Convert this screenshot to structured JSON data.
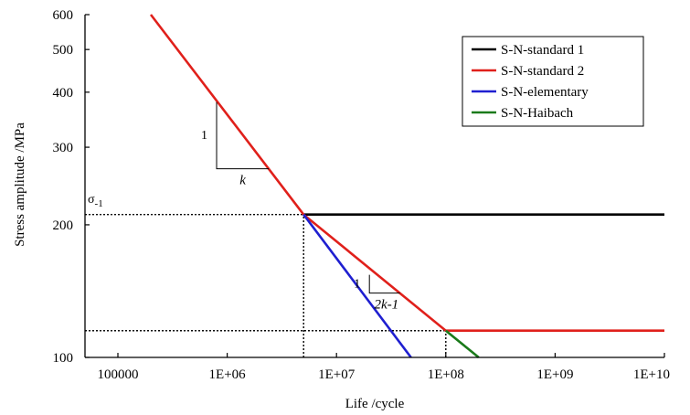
{
  "chart_data": {
    "type": "line",
    "xlabel": "Life /cycle",
    "ylabel": "Stress amplitude /MPa",
    "x_scale": "log",
    "y_scale": "log",
    "xlim": [
      50000,
      10000000000
    ],
    "ylim": [
      100,
      600
    ],
    "x_ticks": [
      100000,
      1000000,
      10000000,
      100000000,
      1000000000,
      10000000000
    ],
    "x_tick_labels": [
      "100000",
      "1E+06",
      "1E+07",
      "1E+08",
      "1E+09",
      "1E+10"
    ],
    "y_ticks": [
      100,
      200,
      300,
      400,
      500,
      600
    ],
    "y_tick_labels": [
      "100",
      "200",
      "300",
      "400",
      "500",
      "600"
    ],
    "grid": false,
    "legend_position": "top-right",
    "series": [
      {
        "name": "S-N-standard 1",
        "color": "#000000",
        "x": [
          5000000,
          10000000000
        ],
        "y": [
          211,
          211
        ]
      },
      {
        "name": "S-N-standard 2",
        "color": "#e0201b",
        "x": [
          200000,
          5000000,
          100000000,
          10000000000
        ],
        "y": [
          600,
          211,
          115,
          115
        ]
      },
      {
        "name": "S-N-elementary",
        "color": "#1f1fd0",
        "x": [
          5000000,
          48000000
        ],
        "y": [
          211,
          100
        ]
      },
      {
        "name": "S-N-Haibach",
        "color": "#1a7a1a",
        "x": [
          100000000,
          200000000
        ],
        "y": [
          115,
          100
        ]
      }
    ],
    "reference_lines": [
      {
        "label": "σ-1",
        "y": 211,
        "x_from": 50000,
        "x_to": 5000000
      },
      {
        "y": 115,
        "x_from": 50000,
        "x_to": 100000000
      },
      {
        "x": 5000000,
        "y_from": 100,
        "y_to": 211
      },
      {
        "x": 100000000,
        "y_from": 100,
        "y_to": 115
      }
    ],
    "slope_triangles": [
      {
        "rise_label": "1",
        "run_label": "k",
        "x_from": 800000,
        "x_to": 2400000,
        "y_top": 380,
        "y_bottom": 268
      },
      {
        "rise_label": "1",
        "run_label": "2k-1",
        "x_from": 20000000,
        "x_to": 38000000,
        "y_top": 154,
        "y_bottom": 140
      }
    ],
    "annotations": {
      "sigma_symbol": "σ",
      "sigma_subscript": "-1"
    }
  }
}
